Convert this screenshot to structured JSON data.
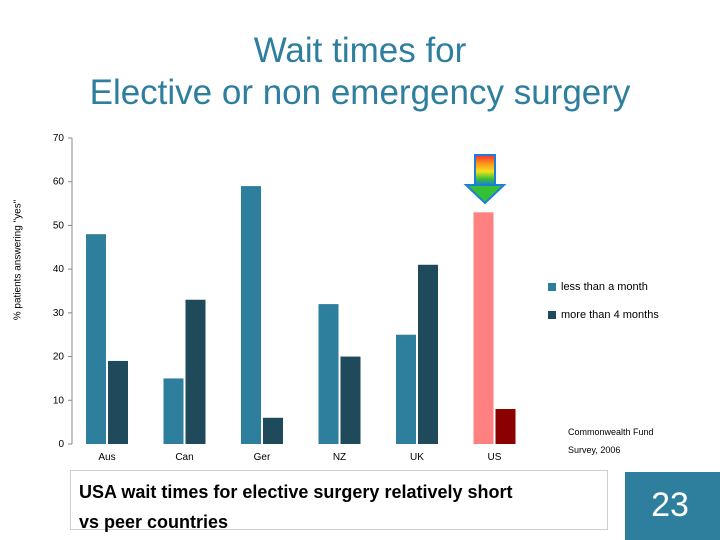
{
  "slide": {
    "title_line1": "Wait times for",
    "title_line2": "Elective or non emergency surgery",
    "caption_line1": "USA wait times for elective surgery relatively short",
    "caption_line2": "vs peer countries",
    "page_number": "23",
    "source_line1": "Commonwealth Fund",
    "source_line2": "Survey, 2006"
  },
  "colors": {
    "less_than_month": "#2e7e9e",
    "more_than_4_months": "#1f4a5c",
    "us_less_than_month": "#ff8080",
    "us_more_than_4_months": "#8b0000",
    "title": "#2e7e9e"
  },
  "chart_data": {
    "type": "bar",
    "categories": [
      "Aus",
      "Can",
      "Ger",
      "NZ",
      "UK",
      "US"
    ],
    "series": [
      {
        "name": "less than a month",
        "values": [
          48,
          15,
          59,
          32,
          25,
          53
        ]
      },
      {
        "name": "more than 4 months",
        "values": [
          19,
          33,
          6,
          20,
          41,
          8
        ]
      }
    ],
    "ylabel": "% patients answering \"yes\"",
    "xlabel": "",
    "ylim": [
      0,
      70
    ],
    "yticks": [
      0,
      10,
      20,
      30,
      40,
      50,
      60,
      70
    ],
    "grid": false,
    "legend": "right",
    "highlight_category": "US",
    "highlight_icon": "rainbow-down-arrow-icon"
  }
}
